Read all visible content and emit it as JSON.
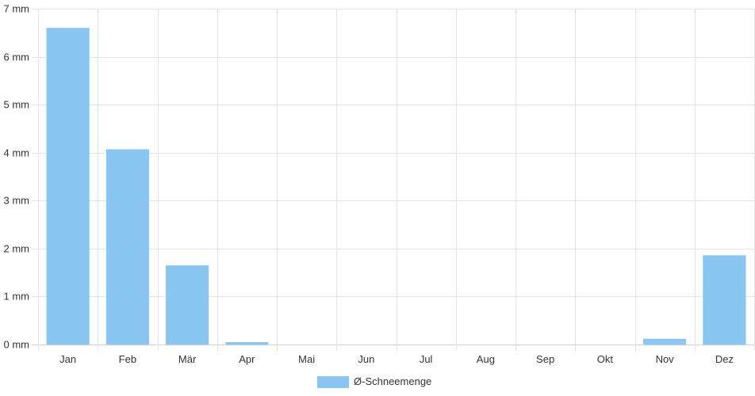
{
  "chart_data": {
    "type": "bar",
    "categories": [
      "Jan",
      "Feb",
      "Mär",
      "Apr",
      "Mai",
      "Jun",
      "Jul",
      "Aug",
      "Sep",
      "Okt",
      "Nov",
      "Dez"
    ],
    "series": [
      {
        "name": "Ø-Schneemenge",
        "values": [
          6.6,
          4.07,
          1.65,
          0.05,
          0,
          0,
          0,
          0,
          0,
          0,
          0.12,
          1.86
        ],
        "color": "#89c6f2"
      }
    ],
    "y_ticks": [
      "0 mm",
      "1 mm",
      "2 mm",
      "3 mm",
      "4 mm",
      "5 mm",
      "6 mm",
      "7 mm"
    ],
    "ylim": [
      0,
      7
    ],
    "grid": true,
    "legend_position": "bottom"
  }
}
